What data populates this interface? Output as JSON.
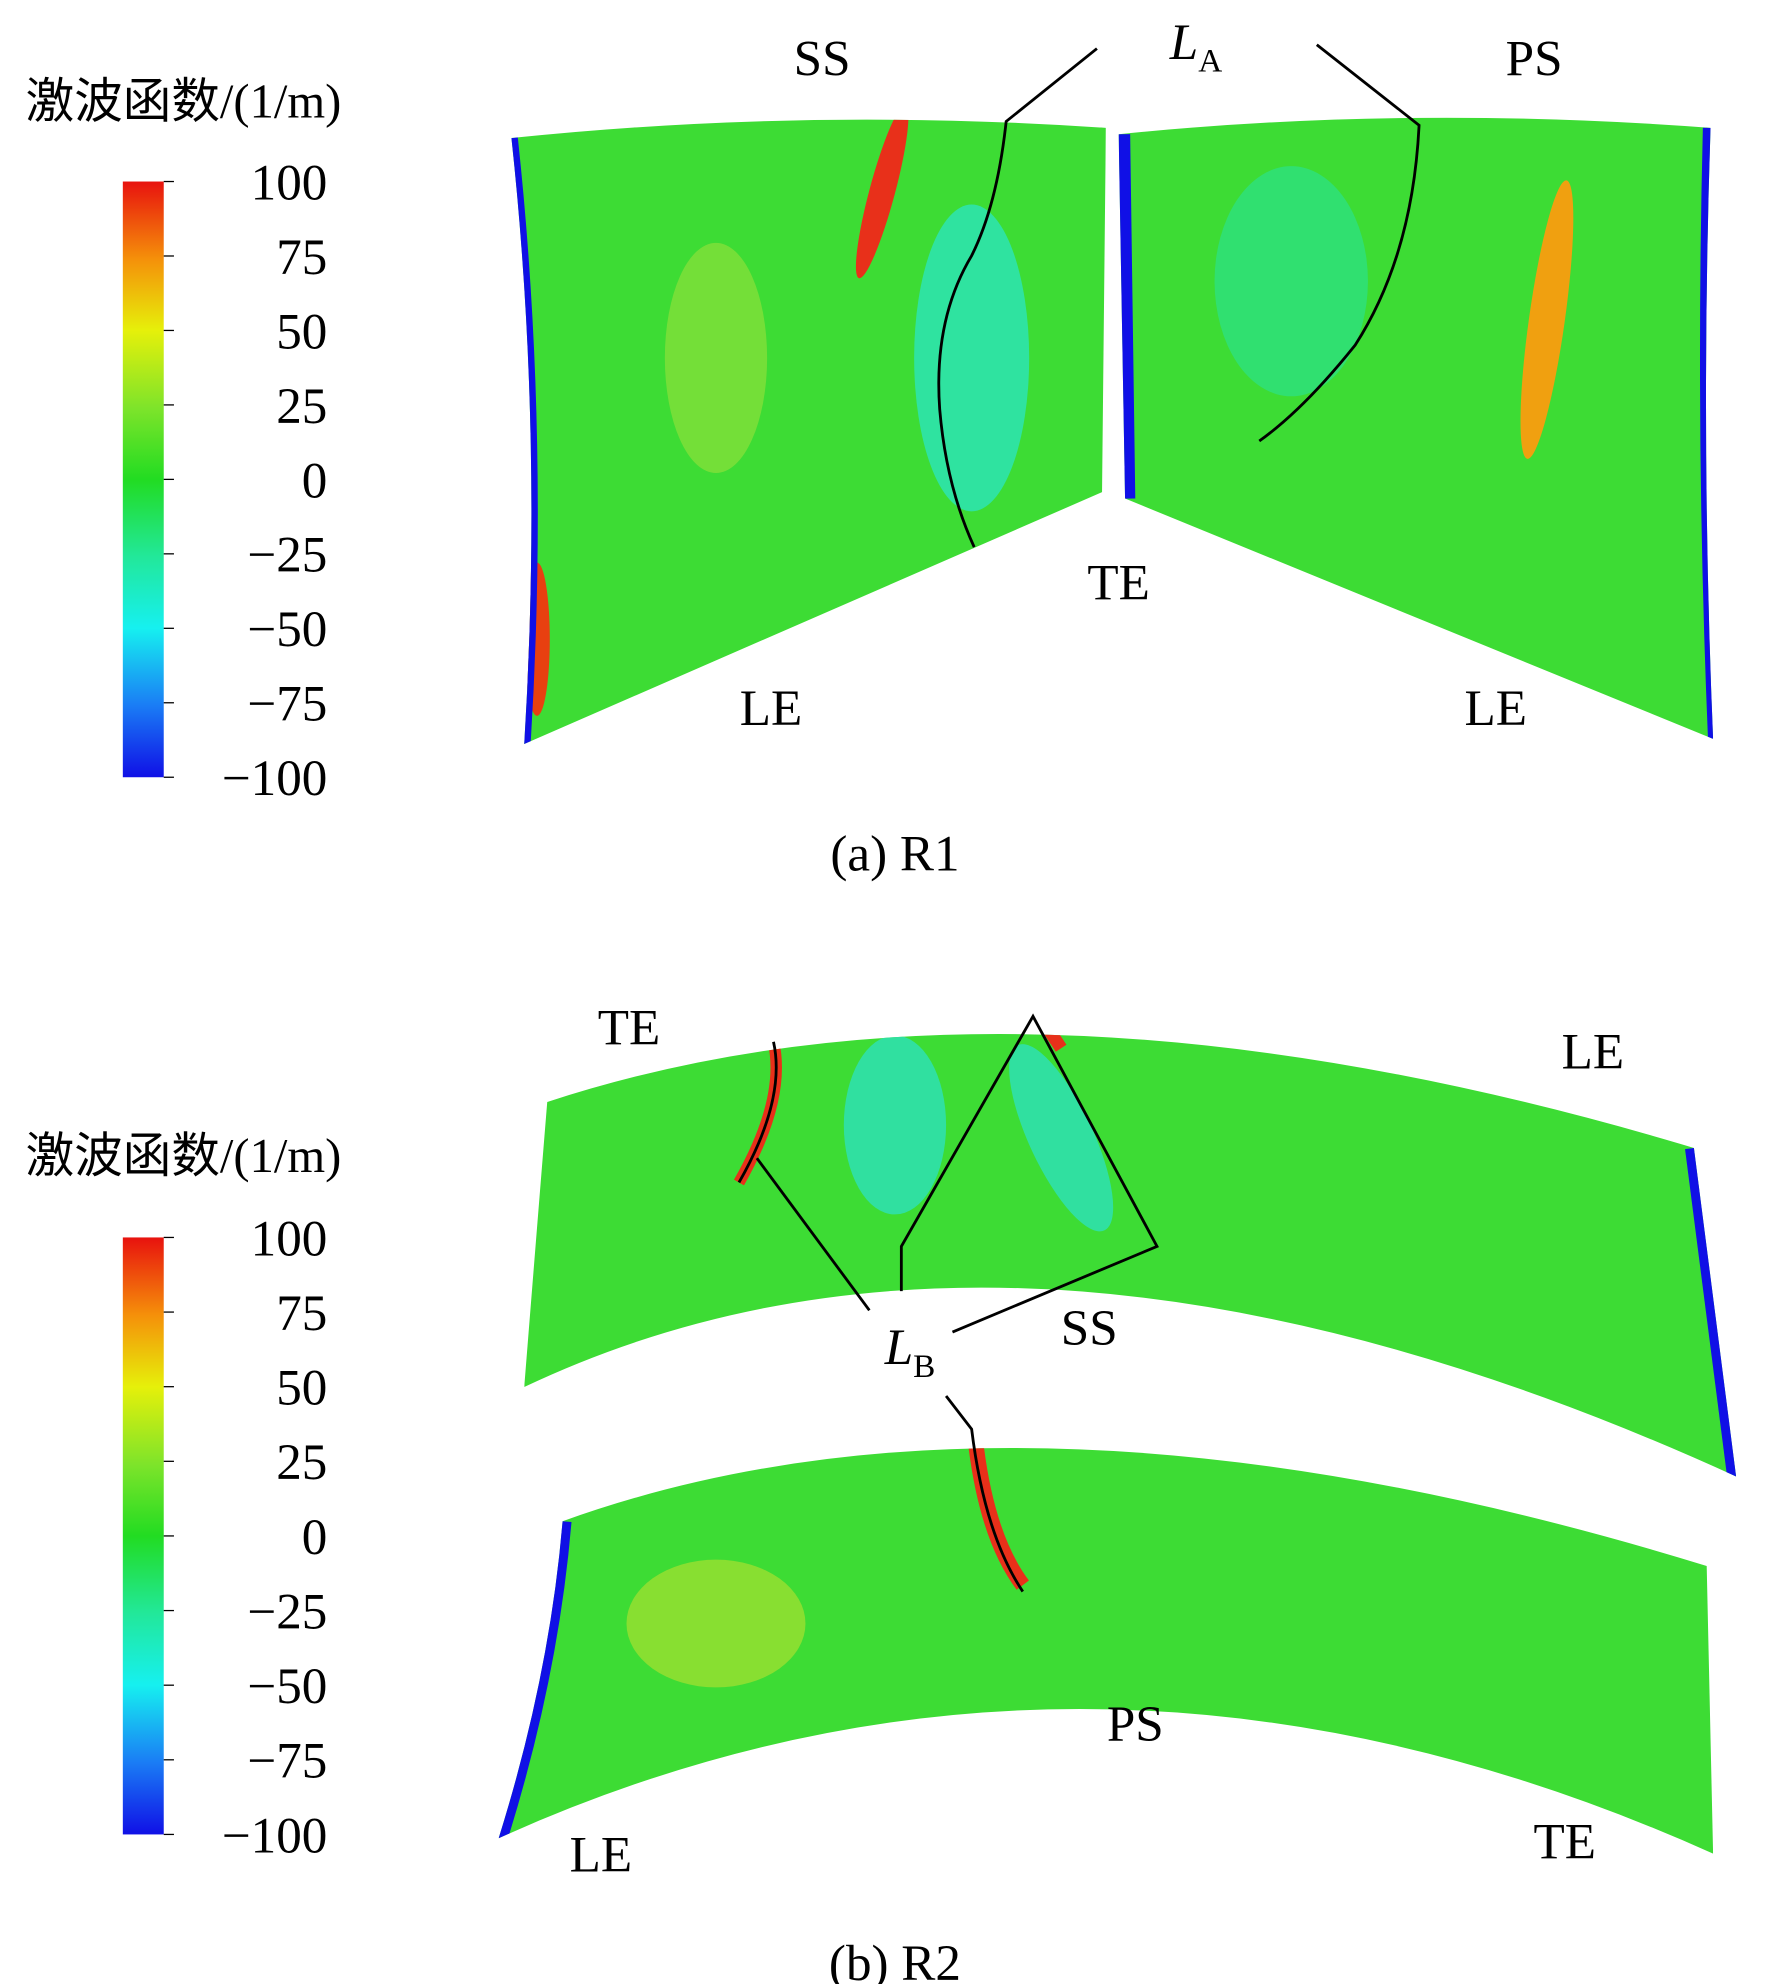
{
  "panels": [
    {
      "caption": "(a) R1",
      "colorbar": {
        "title": "激波函数/(1/m)",
        "lim": [
          -100,
          100
        ],
        "ticks": [
          100,
          75,
          50,
          25,
          0,
          {
            "value": -25,
            "label": "−25"
          },
          {
            "value": -50,
            "label": "−50"
          },
          {
            "value": -75,
            "label": "−75"
          },
          {
            "value": -100,
            "label": "−100"
          }
        ]
      },
      "labels": [
        "SS",
        "PS",
        "TE",
        "LE",
        "LE"
      ],
      "line_label": {
        "main": "L",
        "sub": "A"
      }
    },
    {
      "caption": "(b) R2",
      "colorbar": {
        "title": "激波函数/(1/m)",
        "lim": [
          -100,
          100
        ],
        "ticks": [
          100,
          75,
          50,
          25,
          0,
          {
            "value": -25,
            "label": "−25"
          },
          {
            "value": -50,
            "label": "−50"
          },
          {
            "value": -75,
            "label": "−75"
          },
          {
            "value": -100,
            "label": "−100"
          }
        ]
      },
      "labels": [
        "TE",
        "LE",
        "SS",
        "PS",
        "LE",
        "TE"
      ],
      "line_label": {
        "main": "L",
        "sub": "B"
      }
    }
  ]
}
